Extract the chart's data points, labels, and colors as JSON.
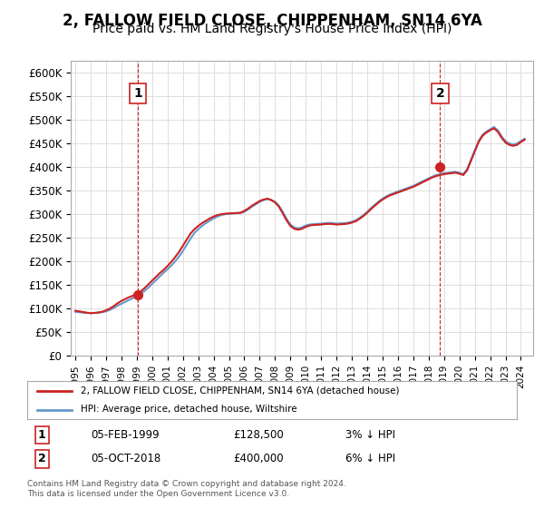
{
  "title": "2, FALLOW FIELD CLOSE, CHIPPENHAM, SN14 6YA",
  "subtitle": "Price paid vs. HM Land Registry's House Price Index (HPI)",
  "title_fontsize": 12,
  "subtitle_fontsize": 10,
  "background_color": "#ffffff",
  "plot_bg_color": "#ffffff",
  "grid_color": "#dddddd",
  "ylim": [
    0,
    625000
  ],
  "yticks": [
    0,
    50000,
    100000,
    150000,
    200000,
    250000,
    300000,
    350000,
    400000,
    450000,
    500000,
    550000,
    600000
  ],
  "ytick_labels": [
    "£0",
    "£50K",
    "£100K",
    "£150K",
    "£200K",
    "£250K",
    "£300K",
    "£350K",
    "£400K",
    "£450K",
    "£500K",
    "£550K",
    "£600K"
  ],
  "sale1_date_idx": 4.1,
  "sale1_price": 128500,
  "sale1_label": "1",
  "sale2_date_idx": 23.8,
  "sale2_price": 400000,
  "sale2_label": "2",
  "legend_line1": "2, FALLOW FIELD CLOSE, CHIPPENHAM, SN14 6YA (detached house)",
  "legend_line2": "HPI: Average price, detached house, Wiltshire",
  "note1_label": "1",
  "note1_date": "05-FEB-1999",
  "note1_price": "£128,500",
  "note1_hpi": "3% ↓ HPI",
  "note2_label": "2",
  "note2_date": "05-OCT-2018",
  "note2_price": "£400,000",
  "note2_hpi": "6% ↓ HPI",
  "footer": "Contains HM Land Registry data © Crown copyright and database right 2024.\nThis data is licensed under the Open Government Licence v3.0.",
  "hpi_color": "#6699cc",
  "price_color": "#cc2222",
  "vline_color": "#cc2222",
  "marker_color": "#cc2222",
  "hpi_data_x": [
    1995.0,
    1995.25,
    1995.5,
    1995.75,
    1996.0,
    1996.25,
    1996.5,
    1996.75,
    1997.0,
    1997.25,
    1997.5,
    1997.75,
    1998.0,
    1998.25,
    1998.5,
    1998.75,
    1999.0,
    1999.25,
    1999.5,
    1999.75,
    2000.0,
    2000.25,
    2000.5,
    2000.75,
    2001.0,
    2001.25,
    2001.5,
    2001.75,
    2002.0,
    2002.25,
    2002.5,
    2002.75,
    2003.0,
    2003.25,
    2003.5,
    2003.75,
    2004.0,
    2004.25,
    2004.5,
    2004.75,
    2005.0,
    2005.25,
    2005.5,
    2005.75,
    2006.0,
    2006.25,
    2006.5,
    2006.75,
    2007.0,
    2007.25,
    2007.5,
    2007.75,
    2008.0,
    2008.25,
    2008.5,
    2008.75,
    2009.0,
    2009.25,
    2009.5,
    2009.75,
    2010.0,
    2010.25,
    2010.5,
    2010.75,
    2011.0,
    2011.25,
    2011.5,
    2011.75,
    2012.0,
    2012.25,
    2012.5,
    2012.75,
    2013.0,
    2013.25,
    2013.5,
    2013.75,
    2014.0,
    2014.25,
    2014.5,
    2014.75,
    2015.0,
    2015.25,
    2015.5,
    2015.75,
    2016.0,
    2016.25,
    2016.5,
    2016.75,
    2017.0,
    2017.25,
    2017.5,
    2017.75,
    2018.0,
    2018.25,
    2018.5,
    2018.75,
    2019.0,
    2019.25,
    2019.5,
    2019.75,
    2020.0,
    2020.25,
    2020.5,
    2020.75,
    2021.0,
    2021.25,
    2021.5,
    2021.75,
    2022.0,
    2022.25,
    2022.5,
    2022.75,
    2023.0,
    2023.25,
    2023.5,
    2023.75,
    2024.0,
    2024.25
  ],
  "hpi_data_y": [
    93000,
    92000,
    91000,
    90500,
    90000,
    90500,
    91000,
    92000,
    94000,
    97000,
    101000,
    106000,
    110000,
    114000,
    118000,
    122000,
    126000,
    131000,
    137000,
    144000,
    152000,
    160000,
    168000,
    176000,
    183000,
    191000,
    200000,
    210000,
    222000,
    235000,
    248000,
    260000,
    268000,
    275000,
    281000,
    286000,
    291000,
    295000,
    298000,
    300000,
    301000,
    301500,
    302000,
    302500,
    305000,
    310000,
    316000,
    321000,
    326000,
    330000,
    332000,
    330000,
    326000,
    318000,
    305000,
    290000,
    278000,
    272000,
    270000,
    272000,
    276000,
    278000,
    279000,
    279500,
    280000,
    281000,
    281500,
    281000,
    280000,
    280500,
    281000,
    282000,
    284000,
    287000,
    292000,
    298000,
    305000,
    313000,
    320000,
    327000,
    333000,
    338000,
    342000,
    345000,
    348000,
    351000,
    354000,
    357000,
    360000,
    364000,
    368000,
    372000,
    376000,
    380000,
    383000,
    385000,
    387000,
    388000,
    389000,
    390000,
    388000,
    385000,
    395000,
    415000,
    435000,
    455000,
    468000,
    475000,
    480000,
    485000,
    478000,
    465000,
    455000,
    450000,
    448000,
    450000,
    455000,
    460000
  ],
  "price_data_x": [
    1995.0,
    1995.25,
    1995.5,
    1995.75,
    1996.0,
    1996.25,
    1996.5,
    1996.75,
    1997.0,
    1997.25,
    1997.5,
    1997.75,
    1998.0,
    1998.25,
    1998.5,
    1998.75,
    1999.0,
    1999.25,
    1999.5,
    1999.75,
    2000.0,
    2000.25,
    2000.5,
    2000.75,
    2001.0,
    2001.25,
    2001.5,
    2001.75,
    2002.0,
    2002.25,
    2002.5,
    2002.75,
    2003.0,
    2003.25,
    2003.5,
    2003.75,
    2004.0,
    2004.25,
    2004.5,
    2004.75,
    2005.0,
    2005.25,
    2005.5,
    2005.75,
    2006.0,
    2006.25,
    2006.5,
    2006.75,
    2007.0,
    2007.25,
    2007.5,
    2007.75,
    2008.0,
    2008.25,
    2008.5,
    2008.75,
    2009.0,
    2009.25,
    2009.5,
    2009.75,
    2010.0,
    2010.25,
    2010.5,
    2010.75,
    2011.0,
    2011.25,
    2011.5,
    2011.75,
    2012.0,
    2012.25,
    2012.5,
    2012.75,
    2013.0,
    2013.25,
    2013.5,
    2013.75,
    2014.0,
    2014.25,
    2014.5,
    2014.75,
    2015.0,
    2015.25,
    2015.5,
    2015.75,
    2016.0,
    2016.25,
    2016.5,
    2016.75,
    2017.0,
    2017.25,
    2017.5,
    2017.75,
    2018.0,
    2018.25,
    2018.5,
    2018.75,
    2019.0,
    2019.25,
    2019.5,
    2019.75,
    2020.0,
    2020.25,
    2020.5,
    2020.75,
    2021.0,
    2021.25,
    2021.5,
    2021.75,
    2022.0,
    2022.25,
    2022.5,
    2022.75,
    2023.0,
    2023.25,
    2023.5,
    2023.75,
    2024.0,
    2024.25
  ],
  "price_data_y": [
    95000,
    94000,
    92500,
    91000,
    90000,
    90500,
    91500,
    93000,
    96000,
    100000,
    105000,
    111000,
    116000,
    120000,
    124000,
    127000,
    130000,
    136000,
    143000,
    151000,
    159000,
    167000,
    175000,
    182000,
    190000,
    199000,
    209000,
    220000,
    233000,
    246000,
    259000,
    268000,
    275000,
    281000,
    286000,
    291000,
    295000,
    298000,
    300000,
    301000,
    301500,
    302000,
    302500,
    303000,
    307000,
    312000,
    318000,
    323000,
    328000,
    331000,
    333000,
    330000,
    325000,
    316000,
    302000,
    287000,
    275000,
    269000,
    267000,
    269000,
    273000,
    276000,
    277000,
    277500,
    278000,
    279000,
    279500,
    279000,
    278000,
    278500,
    279000,
    280000,
    282000,
    285000,
    290000,
    296000,
    303000,
    311000,
    318000,
    325000,
    331000,
    336000,
    340000,
    343000,
    346000,
    349000,
    352000,
    355000,
    358000,
    362000,
    366000,
    370000,
    374000,
    378000,
    381000,
    383000,
    385000,
    386000,
    387000,
    388000,
    386000,
    383000,
    393000,
    413000,
    433000,
    453000,
    466000,
    473000,
    478000,
    482000,
    475000,
    462000,
    452000,
    447000,
    445000,
    447000,
    453000,
    458000
  ],
  "xlim_left": 1994.7,
  "xlim_right": 2024.8,
  "sale1_x": 1999.08,
  "sale2_x": 2018.75
}
